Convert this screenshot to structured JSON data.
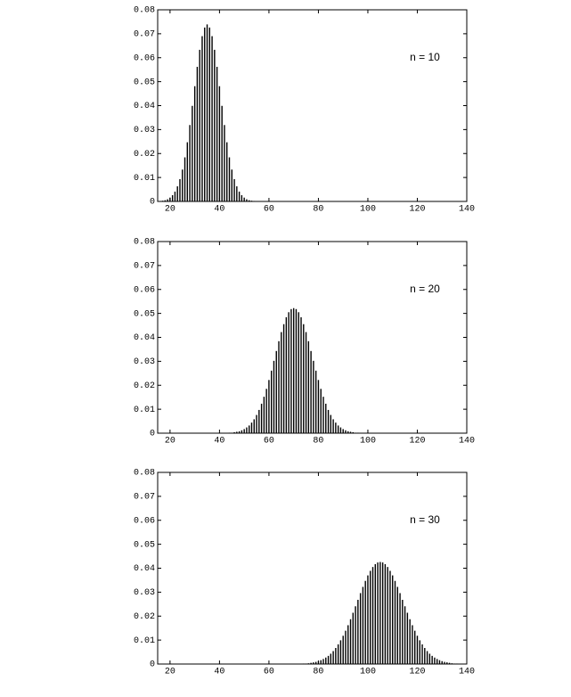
{
  "chart_data": [
    {
      "type": "bar",
      "annotation": "n = 10",
      "color": "#000000",
      "xlim": [
        15,
        140
      ],
      "ylim": [
        0,
        0.08
      ],
      "xticks": [
        20,
        40,
        60,
        80,
        100,
        120,
        140
      ],
      "yticks": [
        0,
        0.01,
        0.02,
        0.03,
        0.04,
        0.05,
        0.06,
        0.07,
        0.08
      ],
      "x": [
        15,
        16,
        17,
        18,
        19,
        20,
        21,
        22,
        23,
        24,
        25,
        26,
        27,
        28,
        29,
        30,
        31,
        32,
        33,
        34,
        35,
        36,
        37,
        38,
        39,
        40,
        41,
        42,
        43,
        44,
        45,
        46,
        47,
        48,
        49,
        50,
        51,
        52,
        53,
        54,
        55
      ],
      "values": [
        0.0001,
        0.0002,
        0.0003,
        0.0005,
        0.0009,
        0.0016,
        0.0026,
        0.0041,
        0.0063,
        0.0093,
        0.0133,
        0.0184,
        0.0247,
        0.0319,
        0.0399,
        0.0481,
        0.0562,
        0.0633,
        0.069,
        0.0726,
        0.0739,
        0.0726,
        0.069,
        0.0633,
        0.0562,
        0.0481,
        0.0399,
        0.0319,
        0.0247,
        0.0184,
        0.0133,
        0.0093,
        0.0063,
        0.0041,
        0.0026,
        0.0016,
        0.0009,
        0.0005,
        0.0003,
        0.0002,
        0.0001
      ]
    },
    {
      "type": "bar",
      "annotation": "n = 20",
      "color": "#000000",
      "xlim": [
        15,
        140
      ],
      "ylim": [
        0,
        0.08
      ],
      "xticks": [
        20,
        40,
        60,
        80,
        100,
        120,
        140
      ],
      "yticks": [
        0,
        0.01,
        0.02,
        0.03,
        0.04,
        0.05,
        0.06,
        0.07,
        0.08
      ],
      "x": [
        42,
        43,
        44,
        45,
        46,
        47,
        48,
        49,
        50,
        51,
        52,
        53,
        54,
        55,
        56,
        57,
        58,
        59,
        60,
        61,
        62,
        63,
        64,
        65,
        66,
        67,
        68,
        69,
        70,
        71,
        72,
        73,
        74,
        75,
        76,
        77,
        78,
        79,
        80,
        81,
        82,
        83,
        84,
        85,
        86,
        87,
        88,
        89,
        90,
        91,
        92,
        93,
        94,
        95,
        96,
        97,
        98
      ],
      "values": [
        0.0001,
        0.0001,
        0.0002,
        0.0002,
        0.0004,
        0.0006,
        0.0008,
        0.0012,
        0.0017,
        0.0024,
        0.0032,
        0.0044,
        0.0058,
        0.0076,
        0.0097,
        0.0123,
        0.0152,
        0.0185,
        0.0222,
        0.0261,
        0.0302,
        0.0343,
        0.0384,
        0.0422,
        0.0455,
        0.0484,
        0.0505,
        0.0518,
        0.0522,
        0.0518,
        0.0505,
        0.0484,
        0.0455,
        0.0422,
        0.0384,
        0.0343,
        0.0302,
        0.0261,
        0.0222,
        0.0185,
        0.0152,
        0.0123,
        0.0097,
        0.0076,
        0.0058,
        0.0044,
        0.0032,
        0.0024,
        0.0017,
        0.0012,
        0.0008,
        0.0006,
        0.0004,
        0.0002,
        0.0002,
        0.0001,
        0.0001
      ]
    },
    {
      "type": "bar",
      "annotation": "n = 30",
      "color": "#000000",
      "xlim": [
        15,
        140
      ],
      "ylim": [
        0,
        0.08
      ],
      "xticks": [
        20,
        40,
        60,
        80,
        100,
        120,
        140
      ],
      "yticks": [
        0,
        0.01,
        0.02,
        0.03,
        0.04,
        0.05,
        0.06,
        0.07,
        0.08
      ],
      "x": [
        71,
        72,
        73,
        74,
        75,
        76,
        77,
        78,
        79,
        80,
        81,
        82,
        83,
        84,
        85,
        86,
        87,
        88,
        89,
        90,
        91,
        92,
        93,
        94,
        95,
        96,
        97,
        98,
        99,
        100,
        101,
        102,
        103,
        104,
        105,
        106,
        107,
        108,
        109,
        110,
        111,
        112,
        113,
        114,
        115,
        116,
        117,
        118,
        119,
        120,
        121,
        122,
        123,
        124,
        125,
        126,
        127,
        128,
        129,
        130,
        131,
        132,
        133,
        134,
        135,
        136,
        137,
        138,
        139
      ],
      "values": [
        0.0001,
        0.0001,
        0.0001,
        0.0002,
        0.0002,
        0.0003,
        0.0005,
        0.0007,
        0.0009,
        0.0012,
        0.0016,
        0.0021,
        0.0027,
        0.0034,
        0.0043,
        0.0054,
        0.0067,
        0.0082,
        0.0099,
        0.0118,
        0.0139,
        0.0162,
        0.0187,
        0.0214,
        0.0241,
        0.0268,
        0.0296,
        0.0322,
        0.0347,
        0.037,
        0.0389,
        0.0405,
        0.0417,
        0.0424,
        0.0426,
        0.0424,
        0.0417,
        0.0405,
        0.0389,
        0.037,
        0.0347,
        0.0322,
        0.0296,
        0.0268,
        0.0241,
        0.0214,
        0.0187,
        0.0162,
        0.0139,
        0.0118,
        0.0099,
        0.0082,
        0.0067,
        0.0054,
        0.0043,
        0.0034,
        0.0027,
        0.0021,
        0.0016,
        0.0012,
        0.0009,
        0.0007,
        0.0005,
        0.0003,
        0.0002,
        0.0002,
        0.0001,
        0.0001,
        0.0001
      ]
    }
  ]
}
